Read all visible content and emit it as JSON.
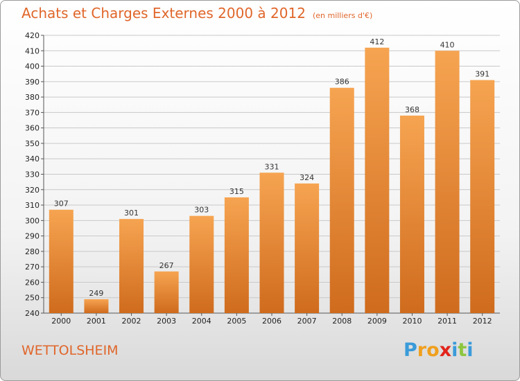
{
  "title": "Achats et Charges Externes 2000 à 2012",
  "subtitle": "(en milliers d'€)",
  "location": "WETTOLSHEIM",
  "logo": {
    "text": "Proxiti",
    "letters": [
      {
        "ch": "P",
        "color": "#3a9bd9"
      },
      {
        "ch": "r",
        "color": "#f0a01e"
      },
      {
        "ch": "o",
        "color": "#f0a01e"
      },
      {
        "ch": "x",
        "color": "#e2231a"
      },
      {
        "ch": "i",
        "color": "#3a9bd9"
      },
      {
        "ch": "t",
        "color": "#8cc63f"
      },
      {
        "ch": "i",
        "color": "#3a9bd9"
      }
    ]
  },
  "colors": {
    "accent": "#e0662a",
    "bar_light": "#f6a451",
    "bar_dark": "#cf6b1d",
    "grid": "#c8c8c8"
  },
  "chart_data": {
    "type": "bar",
    "title": "Achats et Charges Externes 2000 à 2012",
    "xlabel": "",
    "ylabel": "",
    "categories": [
      "2000",
      "2001",
      "2002",
      "2003",
      "2004",
      "2005",
      "2006",
      "2007",
      "2008",
      "2009",
      "2010",
      "2011",
      "2012"
    ],
    "values": [
      307,
      249,
      301,
      267,
      303,
      315,
      331,
      324,
      386,
      412,
      368,
      410,
      391
    ],
    "ylim": [
      240,
      420
    ],
    "ytick_step": 10,
    "grid": true,
    "data_labels": true
  }
}
